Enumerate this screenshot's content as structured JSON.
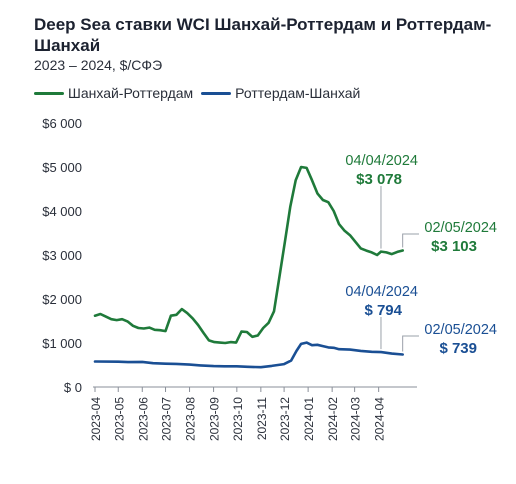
{
  "title": "Deep Sea ставки WCI Шанхай-Роттердам и Роттердам-Шанхай",
  "subtitle": "2023 – 2024, $/СФЭ",
  "colors": {
    "green": "#1f7a3a",
    "blue": "#1a4f94",
    "axis": "#8a8f99",
    "grid": "#e3e5ea",
    "text": "#2a2f3a"
  },
  "chart_data": {
    "type": "line",
    "title": "Deep Sea ставки WCI Шанхай-Роттердам и Роттердам-Шанхай",
    "subtitle": "2023 – 2024, $/СФЭ",
    "xlabel": "",
    "ylabel": "",
    "ylim": [
      0,
      6000
    ],
    "x_range": [
      "2023-04-01",
      "2024-05-05"
    ],
    "grid": false,
    "legend": "top",
    "yticks": [
      {
        "value": 0,
        "label": "$ 0"
      },
      {
        "value": 1000,
        "label": "$1 000"
      },
      {
        "value": 2000,
        "label": "$2 000"
      },
      {
        "value": 3000,
        "label": "$3 000"
      },
      {
        "value": 4000,
        "label": "$4 000"
      },
      {
        "value": 5000,
        "label": "$5 000"
      },
      {
        "value": 6000,
        "label": "$6 000"
      }
    ],
    "xticks": [
      {
        "date": "2023-04-01",
        "label": "2023-04"
      },
      {
        "date": "2023-05-01",
        "label": "2023-05"
      },
      {
        "date": "2023-06-01",
        "label": "2023-06"
      },
      {
        "date": "2023-07-01",
        "label": "2023-07"
      },
      {
        "date": "2023-08-01",
        "label": "2023-08"
      },
      {
        "date": "2023-09-01",
        "label": "2023-09"
      },
      {
        "date": "2023-10-01",
        "label": "2023-10"
      },
      {
        "date": "2023-11-01",
        "label": "2023-11"
      },
      {
        "date": "2023-12-01",
        "label": "2023-12"
      },
      {
        "date": "2024-01-01",
        "label": "2024-01"
      },
      {
        "date": "2024-02-01",
        "label": "2024-02"
      },
      {
        "date": "2024-03-01",
        "label": "2024-03"
      },
      {
        "date": "2024-04-01",
        "label": "2024-04"
      }
    ],
    "series": [
      {
        "name": "Шанхай-Роттердам",
        "color": "#1f7a3a",
        "points": [
          [
            "2023-04-01",
            1620
          ],
          [
            "2023-04-08",
            1660
          ],
          [
            "2023-04-15",
            1600
          ],
          [
            "2023-04-22",
            1540
          ],
          [
            "2023-04-29",
            1520
          ],
          [
            "2023-05-06",
            1540
          ],
          [
            "2023-05-13",
            1490
          ],
          [
            "2023-05-20",
            1390
          ],
          [
            "2023-05-27",
            1340
          ],
          [
            "2023-06-03",
            1330
          ],
          [
            "2023-06-10",
            1350
          ],
          [
            "2023-06-17",
            1300
          ],
          [
            "2023-06-24",
            1290
          ],
          [
            "2023-07-01",
            1270
          ],
          [
            "2023-07-08",
            1620
          ],
          [
            "2023-07-15",
            1640
          ],
          [
            "2023-07-22",
            1770
          ],
          [
            "2023-07-29",
            1680
          ],
          [
            "2023-08-05",
            1560
          ],
          [
            "2023-08-12",
            1410
          ],
          [
            "2023-08-19",
            1230
          ],
          [
            "2023-08-26",
            1060
          ],
          [
            "2023-09-02",
            1020
          ],
          [
            "2023-09-09",
            1010
          ],
          [
            "2023-09-16",
            1000
          ],
          [
            "2023-09-23",
            1020
          ],
          [
            "2023-09-30",
            1010
          ],
          [
            "2023-10-07",
            1260
          ],
          [
            "2023-10-14",
            1250
          ],
          [
            "2023-10-21",
            1140
          ],
          [
            "2023-10-28",
            1170
          ],
          [
            "2023-11-04",
            1340
          ],
          [
            "2023-11-11",
            1460
          ],
          [
            "2023-11-18",
            1720
          ],
          [
            "2023-11-25",
            2500
          ],
          [
            "2023-12-02",
            3300
          ],
          [
            "2023-12-09",
            4100
          ],
          [
            "2023-12-16",
            4700
          ],
          [
            "2023-12-23",
            5000
          ],
          [
            "2023-12-30",
            4980
          ],
          [
            "2024-01-06",
            4700
          ],
          [
            "2024-01-13",
            4400
          ],
          [
            "2024-01-20",
            4250
          ],
          [
            "2024-01-27",
            4200
          ],
          [
            "2024-02-03",
            4000
          ],
          [
            "2024-02-10",
            3700
          ],
          [
            "2024-02-17",
            3550
          ],
          [
            "2024-02-24",
            3450
          ],
          [
            "2024-03-02",
            3300
          ],
          [
            "2024-03-09",
            3150
          ],
          [
            "2024-03-16",
            3100
          ],
          [
            "2024-03-23",
            3060
          ],
          [
            "2024-03-30",
            3000
          ],
          [
            "2024-04-04",
            3078
          ],
          [
            "2024-04-11",
            3060
          ],
          [
            "2024-04-18",
            3020
          ],
          [
            "2024-04-25",
            3070
          ],
          [
            "2024-05-02",
            3103
          ]
        ]
      },
      {
        "name": "Роттердам-Шанхай",
        "color": "#1a4f94",
        "points": [
          [
            "2023-04-01",
            580
          ],
          [
            "2023-05-01",
            575
          ],
          [
            "2023-05-15",
            565
          ],
          [
            "2023-06-01",
            570
          ],
          [
            "2023-06-15",
            540
          ],
          [
            "2023-07-01",
            530
          ],
          [
            "2023-07-15",
            525
          ],
          [
            "2023-08-01",
            510
          ],
          [
            "2023-08-15",
            490
          ],
          [
            "2023-09-01",
            475
          ],
          [
            "2023-09-15",
            470
          ],
          [
            "2023-10-01",
            470
          ],
          [
            "2023-10-15",
            460
          ],
          [
            "2023-11-01",
            450
          ],
          [
            "2023-11-15",
            480
          ],
          [
            "2023-12-01",
            520
          ],
          [
            "2023-12-10",
            600
          ],
          [
            "2023-12-17",
            820
          ],
          [
            "2023-12-23",
            980
          ],
          [
            "2023-12-30",
            1010
          ],
          [
            "2024-01-06",
            950
          ],
          [
            "2024-01-13",
            960
          ],
          [
            "2024-01-20",
            930
          ],
          [
            "2024-01-27",
            900
          ],
          [
            "2024-02-03",
            890
          ],
          [
            "2024-02-10",
            860
          ],
          [
            "2024-02-24",
            850
          ],
          [
            "2024-03-09",
            820
          ],
          [
            "2024-03-23",
            800
          ],
          [
            "2024-04-04",
            794
          ],
          [
            "2024-04-18",
            760
          ],
          [
            "2024-05-02",
            739
          ]
        ]
      }
    ],
    "annotations": [
      {
        "series": 0,
        "date": "2024-04-04",
        "value": 3078,
        "date_label": "04/04/2024",
        "value_label": "$3 078"
      },
      {
        "series": 0,
        "date": "2024-05-02",
        "value": 3103,
        "date_label": "02/05/2024",
        "value_label": "$3 103"
      },
      {
        "series": 1,
        "date": "2024-04-04",
        "value": 794,
        "date_label": "04/04/2024",
        "value_label": "$ 794"
      },
      {
        "series": 1,
        "date": "2024-05-02",
        "value": 739,
        "date_label": "02/05/2024",
        "value_label": "$ 739"
      }
    ]
  }
}
